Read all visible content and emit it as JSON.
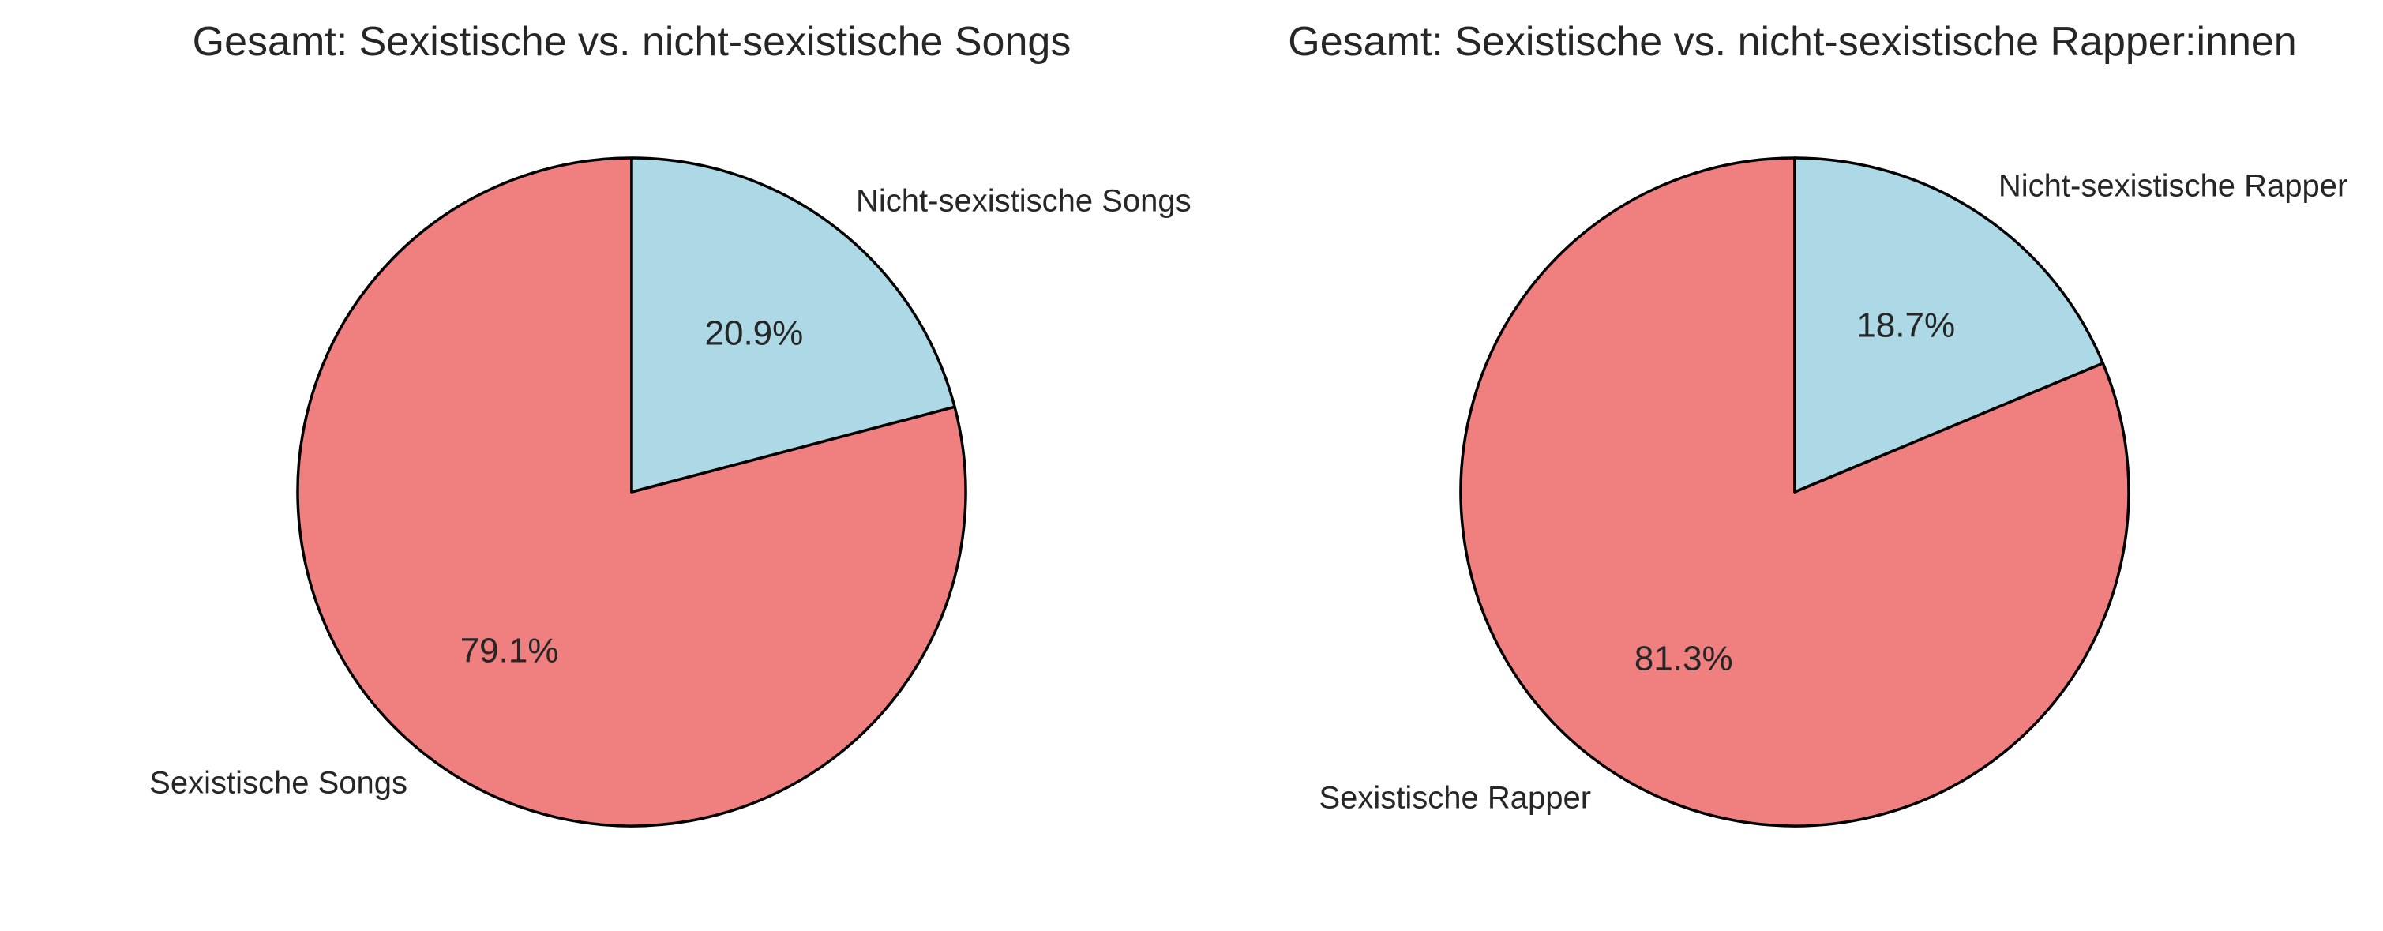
{
  "chart_data": [
    {
      "type": "pie",
      "title": "Gesamt: Sexistische vs. nicht-sexistische Songs",
      "start_angle_deg": 90,
      "direction": "counterclockwise",
      "slices": [
        {
          "label": "Sexistische Songs",
          "value": 79.1,
          "pct_label": "79.1%",
          "color": "#f08080"
        },
        {
          "label": "Nicht-sexistische Songs",
          "value": 20.9,
          "pct_label": "20.9%",
          "color": "#add8e6"
        }
      ]
    },
    {
      "type": "pie",
      "title": "Gesamt: Sexistische vs. nicht-sexistische Rapper:innen",
      "start_angle_deg": 90,
      "direction": "counterclockwise",
      "slices": [
        {
          "label": "Sexistische Rapper",
          "value": 81.3,
          "pct_label": "81.3%",
          "color": "#f08080"
        },
        {
          "label": "Nicht-sexistische Rapper",
          "value": 18.7,
          "pct_label": "18.7%",
          "color": "#add8e6"
        }
      ]
    }
  ]
}
